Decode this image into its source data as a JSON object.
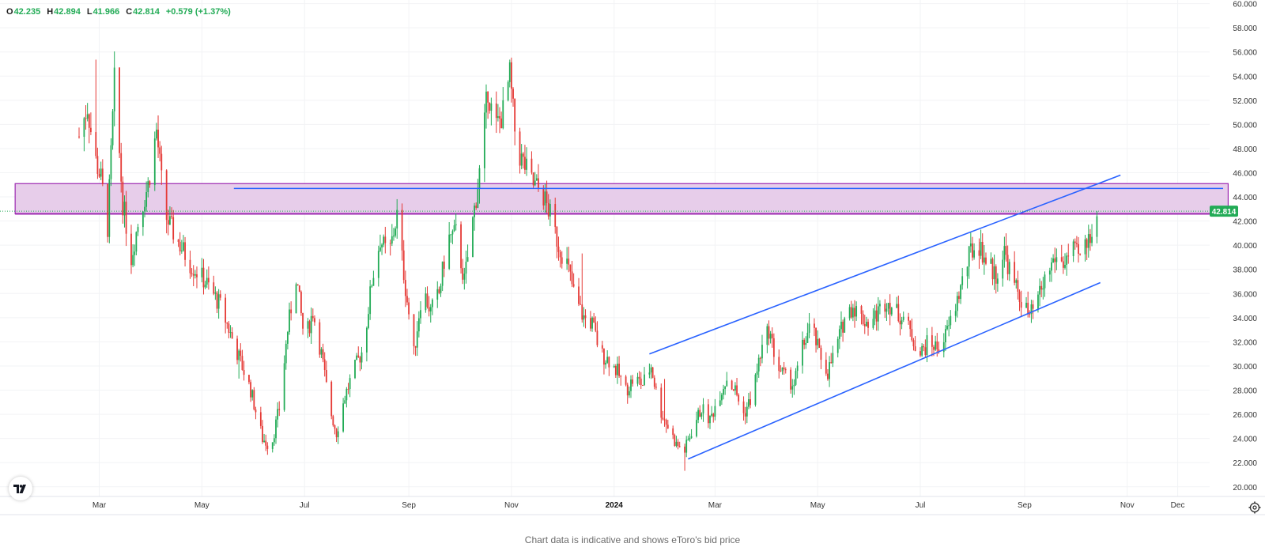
{
  "ohlc": {
    "o_label": "O",
    "o_value": "42.235",
    "h_label": "H",
    "h_value": "42.894",
    "l_label": "L",
    "l_value": "41.966",
    "c_label": "C",
    "c_value": "42.814",
    "change": "+0.579 (+1.37%)"
  },
  "footer_note": "Chart data is indicative and shows eToro's bid price",
  "colors": {
    "up": "#22ab56",
    "down": "#e53935",
    "trendline": "#2962ff",
    "zone_fill": "#e7cdea",
    "zone_border": "#9c27b0",
    "last_price_bg": "#22ab56",
    "grid": "#f2f3f5"
  },
  "icons": {
    "logo": "tradingview-logo-icon",
    "settings": "gear-icon"
  },
  "chart_data": {
    "type": "candlestick",
    "title": "",
    "y_range": [
      19.2,
      60.3
    ],
    "y_ticks": [
      "60.000",
      "58.000",
      "56.000",
      "54.000",
      "52.000",
      "50.000",
      "48.000",
      "46.000",
      "44.000",
      "42.000",
      "40.000",
      "38.000",
      "36.000",
      "34.000",
      "32.000",
      "30.000",
      "28.000",
      "26.000",
      "24.000",
      "22.000",
      "20.000"
    ],
    "x_range": [
      "2023-01-01",
      "2024-12-20"
    ],
    "x_ticks": [
      {
        "label": "Mar",
        "date": "2023-03-01"
      },
      {
        "label": "May",
        "date": "2023-05-01"
      },
      {
        "label": "Jul",
        "date": "2023-07-01"
      },
      {
        "label": "Sep",
        "date": "2023-09-01"
      },
      {
        "label": "Nov",
        "date": "2023-11-01"
      },
      {
        "label": "2024",
        "date": "2024-01-01"
      },
      {
        "label": "Mar",
        "date": "2024-03-01"
      },
      {
        "label": "May",
        "date": "2024-05-01"
      },
      {
        "label": "Jul",
        "date": "2024-07-01"
      },
      {
        "label": "Sep",
        "date": "2024-09-01"
      },
      {
        "label": "Nov",
        "date": "2024-11-01"
      },
      {
        "label": "Dec",
        "date": "2024-12-01"
      }
    ],
    "last_price": "42.814",
    "price_path": [
      [
        "2023-02-17",
        49.0
      ],
      [
        "2023-02-22",
        51.5
      ],
      [
        "2023-02-26",
        47.5
      ],
      [
        "2023-03-02",
        45.5
      ],
      [
        "2023-03-06",
        41.5
      ],
      [
        "2023-03-10",
        53.5
      ],
      [
        "2023-03-15",
        43.5
      ],
      [
        "2023-03-20",
        39.0
      ],
      [
        "2023-03-25",
        42.5
      ],
      [
        "2023-03-30",
        45.0
      ],
      [
        "2023-04-04",
        49.5
      ],
      [
        "2023-04-09",
        42.5
      ],
      [
        "2023-04-16",
        40.5
      ],
      [
        "2023-04-24",
        38.5
      ],
      [
        "2023-05-03",
        37.0
      ],
      [
        "2023-05-12",
        35.0
      ],
      [
        "2023-05-21",
        31.5
      ],
      [
        "2023-05-30",
        28.0
      ],
      [
        "2023-06-06",
        24.0
      ],
      [
        "2023-06-11",
        23.3
      ],
      [
        "2023-06-16",
        26.5
      ],
      [
        "2023-06-21",
        33.0
      ],
      [
        "2023-06-26",
        37.5
      ],
      [
        "2023-07-01",
        32.0
      ],
      [
        "2023-07-06",
        34.5
      ],
      [
        "2023-07-11",
        31.0
      ],
      [
        "2023-07-16",
        26.5
      ],
      [
        "2023-07-20",
        24.5
      ],
      [
        "2023-07-25",
        27.5
      ],
      [
        "2023-07-30",
        29.5
      ],
      [
        "2023-08-05",
        31.5
      ],
      [
        "2023-08-10",
        37.0
      ],
      [
        "2023-08-15",
        40.5
      ],
      [
        "2023-08-20",
        39.0
      ],
      [
        "2023-08-25",
        42.5
      ],
      [
        "2023-08-30",
        36.5
      ],
      [
        "2023-09-04",
        31.0
      ],
      [
        "2023-09-09",
        36.5
      ],
      [
        "2023-09-14",
        34.5
      ],
      [
        "2023-09-19",
        36.0
      ],
      [
        "2023-09-24",
        40.5
      ],
      [
        "2023-09-29",
        41.0
      ],
      [
        "2023-10-04",
        37.0
      ],
      [
        "2023-10-09",
        42.0
      ],
      [
        "2023-10-14",
        47.0
      ],
      [
        "2023-10-18",
        53.0
      ],
      [
        "2023-10-22",
        49.5
      ],
      [
        "2023-10-27",
        51.0
      ],
      [
        "2023-10-31",
        54.0
      ],
      [
        "2023-11-04",
        48.0
      ],
      [
        "2023-11-09",
        46.5
      ],
      [
        "2023-11-14",
        45.0
      ],
      [
        "2023-11-19",
        44.5
      ],
      [
        "2023-11-24",
        42.5
      ],
      [
        "2023-11-29",
        40.0
      ],
      [
        "2023-12-04",
        38.5
      ],
      [
        "2023-12-09",
        35.5
      ],
      [
        "2023-12-14",
        34.0
      ],
      [
        "2023-12-19",
        33.5
      ],
      [
        "2023-12-24",
        31.0
      ],
      [
        "2023-12-29",
        30.5
      ],
      [
        "2024-01-03",
        29.5
      ],
      [
        "2024-01-08",
        28.0
      ],
      [
        "2024-01-13",
        29.0
      ],
      [
        "2024-01-18",
        28.5
      ],
      [
        "2024-01-23",
        30.0
      ],
      [
        "2024-01-28",
        26.5
      ],
      [
        "2024-02-02",
        25.0
      ],
      [
        "2024-02-07",
        23.5
      ],
      [
        "2024-02-12",
        23.0
      ],
      [
        "2024-02-17",
        25.0
      ],
      [
        "2024-02-22",
        26.5
      ],
      [
        "2024-02-27",
        25.5
      ],
      [
        "2024-03-03",
        27.5
      ],
      [
        "2024-03-08",
        29.0
      ],
      [
        "2024-03-13",
        28.0
      ],
      [
        "2024-03-18",
        26.0
      ],
      [
        "2024-03-23",
        27.5
      ],
      [
        "2024-03-28",
        31.0
      ],
      [
        "2024-04-02",
        33.0
      ],
      [
        "2024-04-07",
        30.0
      ],
      [
        "2024-04-12",
        29.0
      ],
      [
        "2024-04-17",
        28.5
      ],
      [
        "2024-04-22",
        31.5
      ],
      [
        "2024-04-27",
        33.5
      ],
      [
        "2024-05-02",
        31.0
      ],
      [
        "2024-05-07",
        29.5
      ],
      [
        "2024-05-12",
        31.5
      ],
      [
        "2024-05-17",
        34.0
      ],
      [
        "2024-05-22",
        35.0
      ],
      [
        "2024-05-27",
        34.0
      ],
      [
        "2024-06-01",
        33.5
      ],
      [
        "2024-06-06",
        34.5
      ],
      [
        "2024-06-11",
        35.5
      ],
      [
        "2024-06-16",
        34.5
      ],
      [
        "2024-06-21",
        34.0
      ],
      [
        "2024-06-26",
        32.5
      ],
      [
        "2024-07-01",
        31.0
      ],
      [
        "2024-07-06",
        32.0
      ],
      [
        "2024-07-11",
        31.5
      ],
      [
        "2024-07-16",
        32.5
      ],
      [
        "2024-07-21",
        34.5
      ],
      [
        "2024-07-26",
        37.0
      ],
      [
        "2024-07-31",
        39.5
      ],
      [
        "2024-08-05",
        40.0
      ],
      [
        "2024-08-10",
        38.5
      ],
      [
        "2024-08-15",
        37.5
      ],
      [
        "2024-08-20",
        39.5
      ],
      [
        "2024-08-25",
        37.0
      ],
      [
        "2024-08-30",
        35.5
      ],
      [
        "2024-09-04",
        34.0
      ],
      [
        "2024-09-09",
        35.5
      ],
      [
        "2024-09-14",
        37.5
      ],
      [
        "2024-09-19",
        39.0
      ],
      [
        "2024-09-24",
        38.5
      ],
      [
        "2024-09-29",
        39.5
      ],
      [
        "2024-10-04",
        39.0
      ],
      [
        "2024-10-09",
        40.5
      ],
      [
        "2024-10-12",
        42.0
      ],
      [
        "2024-10-14",
        42.81
      ]
    ],
    "annotations": {
      "supply_zone": {
        "start": "2023-01-10",
        "end": "2024-12-31",
        "low": 42.6,
        "high": 45.1
      },
      "horizontal_line": {
        "start": "2023-05-20",
        "end": "2024-12-28",
        "price": 44.7
      },
      "zone_bottom_line": {
        "start": "2023-01-10",
        "end": "2024-12-31",
        "price": 42.6
      },
      "channel_upper": {
        "start": [
          "2024-01-22",
          31.0
        ],
        "end": [
          "2024-10-28",
          45.8
        ]
      },
      "channel_lower": {
        "start": [
          "2024-02-14",
          22.3
        ],
        "end": [
          "2024-10-16",
          36.9
        ]
      }
    }
  }
}
